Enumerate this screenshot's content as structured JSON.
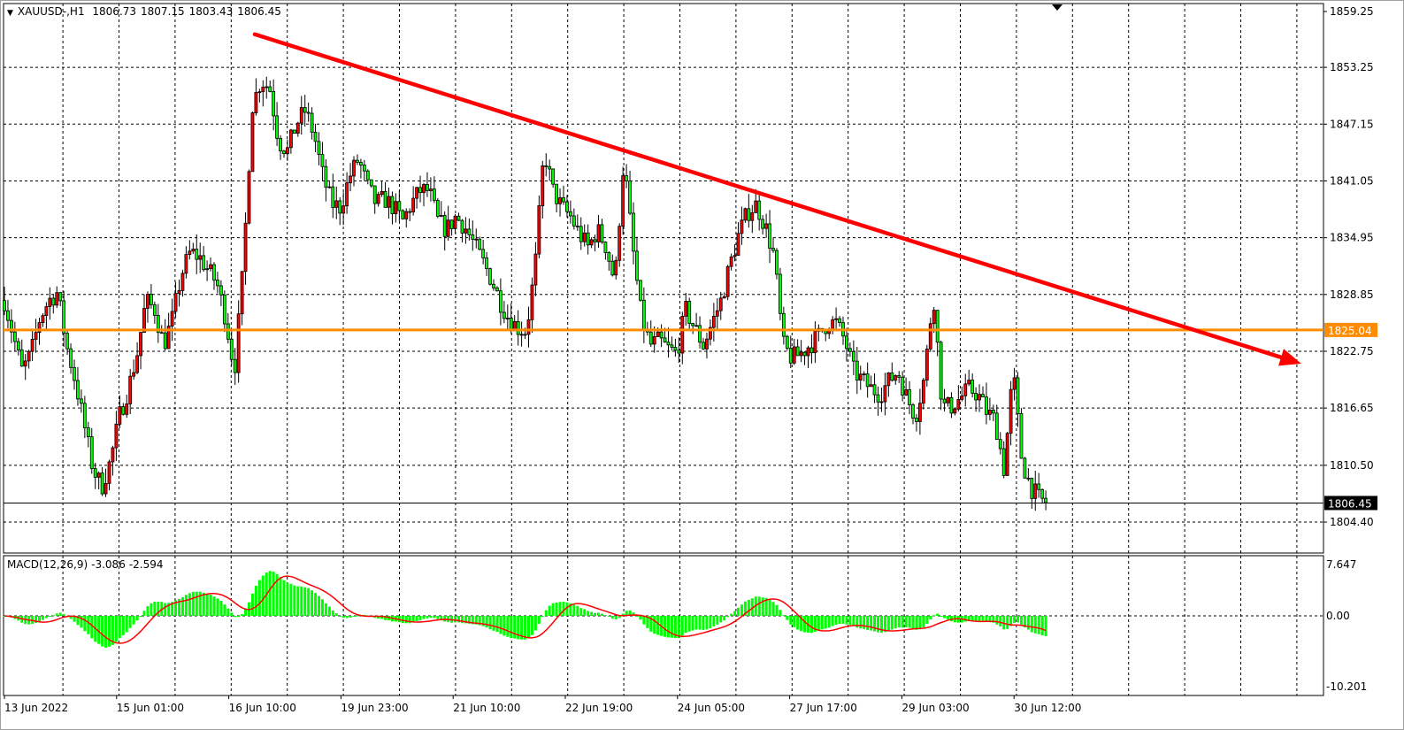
{
  "header": {
    "symbol": "XAUUSD-,H1",
    "open": "1806.73",
    "high": "1807.15",
    "low": "1803.43",
    "close": "1806.45"
  },
  "macd_header": {
    "name": "MACD(12,26,9)",
    "macd": "-3.086",
    "signal": "-2.594"
  },
  "colors": {
    "bull": "#ff0000",
    "bear": "#00ff00",
    "trendline": "#ff0000",
    "level": "#ff8c00",
    "macd_hist": "#00ff00",
    "macd_signal": "#ff0000",
    "grid": "#000000"
  },
  "chart_data": {
    "type": "candlestick",
    "price_ticks": [
      "1859.25",
      "1853.25",
      "1847.15",
      "1841.05",
      "1834.95",
      "1828.85",
      "1822.75",
      "1816.65",
      "1810.50",
      "1804.40"
    ],
    "ylim": [
      1804.4,
      1859.25
    ],
    "time_labels": [
      "13 Jun 2022",
      "15 Jun 01:00",
      "16 Jun 10:00",
      "19 Jun 23:00",
      "21 Jun 10:00",
      "22 Jun 19:00",
      "24 Jun 05:00",
      "27 Jun 17:00",
      "29 Jun 03:00",
      "30 Jun 12:00"
    ],
    "grid": true,
    "closes": [
      1828.2,
      1824.4,
      1820.6,
      1822.5,
      1826.3,
      1828.2,
      1829.1,
      1823.4,
      1819.6,
      1814.9,
      1810.1,
      1808.2,
      1811.0,
      1815.8,
      1818.7,
      1822.5,
      1828.2,
      1827.2,
      1823.4,
      1826.3,
      1831.0,
      1833.4,
      1832.9,
      1831.5,
      1830.1,
      1826.3,
      1820.6,
      1831.9,
      1849.1,
      1851.9,
      1851.0,
      1845.3,
      1844.3,
      1847.2,
      1848.6,
      1846.0,
      1841.5,
      1838.6,
      1838.2,
      1841.5,
      1843.4,
      1840.5,
      1838.6,
      1839.1,
      1838.2,
      1836.7,
      1838.6,
      1840.0,
      1840.0,
      1836.7,
      1835.8,
      1837.2,
      1836.2,
      1834.4,
      1832.5,
      1830.6,
      1828.2,
      1826.3,
      1825.3,
      1824.9,
      1832.0,
      1844.3,
      1840.0,
      1838.2,
      1837.2,
      1835.3,
      1833.9,
      1835.8,
      1834.0,
      1830.1,
      1843.4,
      1834.0,
      1826.3,
      1823.4,
      1823.9,
      1823.0,
      1822.5,
      1827.2,
      1825.3,
      1823.4,
      1825.8,
      1828.2,
      1832.0,
      1835.3,
      1837.7,
      1838.5,
      1836.2,
      1833.0,
      1823.4,
      1822.0,
      1822.5,
      1823.4,
      1824.4,
      1825.8,
      1825.8,
      1823.9,
      1820.6,
      1819.6,
      1818.7,
      1818.2,
      1819.6,
      1820.6,
      1817.7,
      1815.8,
      1820.0,
      1829.1,
      1816.8,
      1816.8,
      1817.7,
      1818.7,
      1818.2,
      1816.3,
      1815.3,
      1810.0,
      1820.6,
      1811.0,
      1808.2,
      1806.8,
      1806.45
    ],
    "horizontal_level": {
      "price": 1825.04,
      "label": "1825.04"
    },
    "current_price": {
      "price": 1806.45,
      "label": "1806.45"
    },
    "trendline": {
      "from_price": 1856.8,
      "to_price": 1822.1
    },
    "macd": {
      "ticks": [
        "7.647",
        "0.00",
        "-10.201"
      ],
      "ylim": [
        -10.201,
        7.647
      ],
      "fast": 12,
      "slow": 26,
      "signal": 9
    }
  }
}
